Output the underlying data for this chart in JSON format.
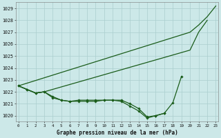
{
  "title": "Graphe pression niveau de la mer (hPa)",
  "bg_color": "#cce8e8",
  "grid_color": "#aacece",
  "line_color": "#1a5c1a",
  "marker_color": "#1a5c1a",
  "ylabel_values": [
    1020,
    1021,
    1022,
    1023,
    1024,
    1025,
    1026,
    1027,
    1028,
    1029
  ],
  "x_hours": [
    0,
    1,
    2,
    3,
    4,
    5,
    6,
    7,
    8,
    9,
    10,
    11,
    12,
    13,
    14,
    15,
    16,
    17,
    18,
    19,
    20,
    21,
    22,
    23
  ],
  "series": {
    "line1_max": [
      1022.5,
      null,
      null,
      null,
      null,
      null,
      null,
      null,
      null,
      null,
      null,
      null,
      null,
      null,
      null,
      null,
      null,
      null,
      null,
      null,
      1027.0,
      1027.6,
      1028.3,
      1029.2
    ],
    "line2_high": [
      1022.5,
      1022.2,
      1021.9,
      1022.0,
      null,
      null,
      null,
      null,
      null,
      null,
      null,
      null,
      null,
      null,
      null,
      null,
      null,
      null,
      null,
      null,
      1025.5,
      1027.0,
      1028.0,
      null
    ],
    "line3_current": [
      1022.5,
      1022.2,
      1021.9,
      1022.0,
      1021.6,
      1021.3,
      1021.2,
      1021.3,
      1021.3,
      1021.3,
      1021.3,
      1021.3,
      1021.3,
      1021.0,
      1020.6,
      1019.9,
      1020.0,
      1020.2,
      1021.1,
      1023.3,
      null,
      null,
      null,
      null
    ],
    "line4_min": [
      1022.5,
      1022.2,
      1021.9,
      1022.0,
      1021.5,
      1021.3,
      1021.2,
      1021.2,
      1021.2,
      1021.2,
      1021.3,
      1021.3,
      1021.2,
      1020.8,
      1020.4,
      1019.8,
      1020.0,
      1020.2,
      null,
      null,
      null,
      null,
      null,
      null
    ]
  }
}
